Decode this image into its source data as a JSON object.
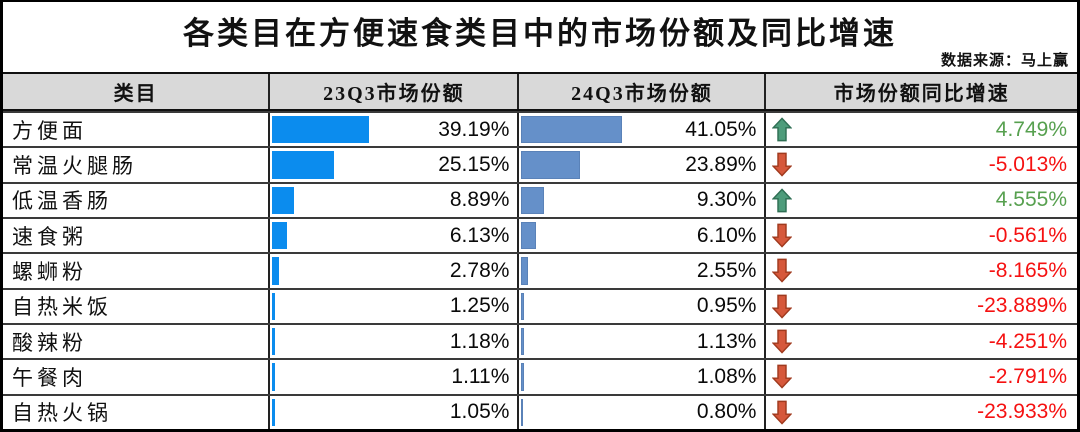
{
  "header": {
    "title": "各类目在方便速食类目中的市场份额及同比增速",
    "source": "数据来源：马上赢"
  },
  "table": {
    "headers": [
      "类目",
      "23Q3市场份额",
      "24Q3市场份额",
      "市场份额同比增速"
    ],
    "rows": [
      {
        "category": "方便面",
        "share23": "39.19%",
        "share23_value": 39.19,
        "share24": "41.05%",
        "share24_value": 41.05,
        "growth": "4.749%",
        "direction": "up"
      },
      {
        "category": "常温火腿肠",
        "share23": "25.15%",
        "share23_value": 25.15,
        "share24": "23.89%",
        "share24_value": 23.89,
        "growth": "-5.013%",
        "direction": "down"
      },
      {
        "category": "低温香肠",
        "share23": "8.89%",
        "share23_value": 8.89,
        "share24": "9.30%",
        "share24_value": 9.3,
        "growth": "4.555%",
        "direction": "up"
      },
      {
        "category": "速食粥",
        "share23": "6.13%",
        "share23_value": 6.13,
        "share24": "6.10%",
        "share24_value": 6.1,
        "growth": "-0.561%",
        "direction": "down"
      },
      {
        "category": "螺蛳粉",
        "share23": "2.78%",
        "share23_value": 2.78,
        "share24": "2.55%",
        "share24_value": 2.55,
        "growth": "-8.165%",
        "direction": "down"
      },
      {
        "category": "自热米饭",
        "share23": "1.25%",
        "share23_value": 1.25,
        "share24": "0.95%",
        "share24_value": 0.95,
        "growth": "-23.889%",
        "direction": "down"
      },
      {
        "category": "酸辣粉",
        "share23": "1.18%",
        "share23_value": 1.18,
        "share24": "1.13%",
        "share24_value": 1.13,
        "growth": "-4.251%",
        "direction": "down"
      },
      {
        "category": "午餐肉",
        "share23": "1.11%",
        "share23_value": 1.11,
        "share24": "1.08%",
        "share24_value": 1.08,
        "growth": "-2.791%",
        "direction": "down"
      },
      {
        "category": "自热火锅",
        "share23": "1.05%",
        "share23_value": 1.05,
        "share24": "0.80%",
        "share24_value": 0.8,
        "growth": "-23.933%",
        "direction": "down"
      }
    ]
  },
  "colors": {
    "bar23": "#0b8cee",
    "bar24": "#6590c9",
    "green-text": "#57a04f",
    "red-text": "#f51111",
    "arrow-up-fill": "#4e9c7b",
    "arrow-up-stroke": "#2f6f54",
    "arrow-down-fill": "#d6583b",
    "arrow-down-stroke": "#a03a1e",
    "header-bg": "#d9d9d9"
  },
  "chart_data": {
    "type": "table",
    "title": "各类目在方便速食类目中的市场份额及同比增速",
    "source": "数据来源：马上赢",
    "columns": [
      "类目",
      "23Q3市场份额",
      "24Q3市场份额",
      "市场份额同比增速"
    ],
    "categories": [
      "方便面",
      "常温火腿肠",
      "低温香肠",
      "速食粥",
      "螺蛳粉",
      "自热米饭",
      "酸辣粉",
      "午餐肉",
      "自热火锅"
    ],
    "series": [
      {
        "name": "23Q3市场份额",
        "unit": "%",
        "type": "bar-in-cell",
        "bar_scale": [
          0,
          100
        ],
        "values": [
          39.19,
          25.15,
          8.89,
          6.13,
          2.78,
          1.25,
          1.18,
          1.11,
          1.05
        ]
      },
      {
        "name": "24Q3市场份额",
        "unit": "%",
        "type": "bar-in-cell",
        "bar_scale": [
          0,
          100
        ],
        "values": [
          41.05,
          23.89,
          9.3,
          6.1,
          2.55,
          0.95,
          1.13,
          1.08,
          0.8
        ]
      },
      {
        "name": "市场份额同比增速",
        "unit": "%",
        "type": "value-with-trend-arrow",
        "values": [
          4.749,
          -5.013,
          4.555,
          -0.561,
          -8.165,
          -23.889,
          -4.251,
          -2.791,
          -23.933
        ]
      }
    ]
  }
}
